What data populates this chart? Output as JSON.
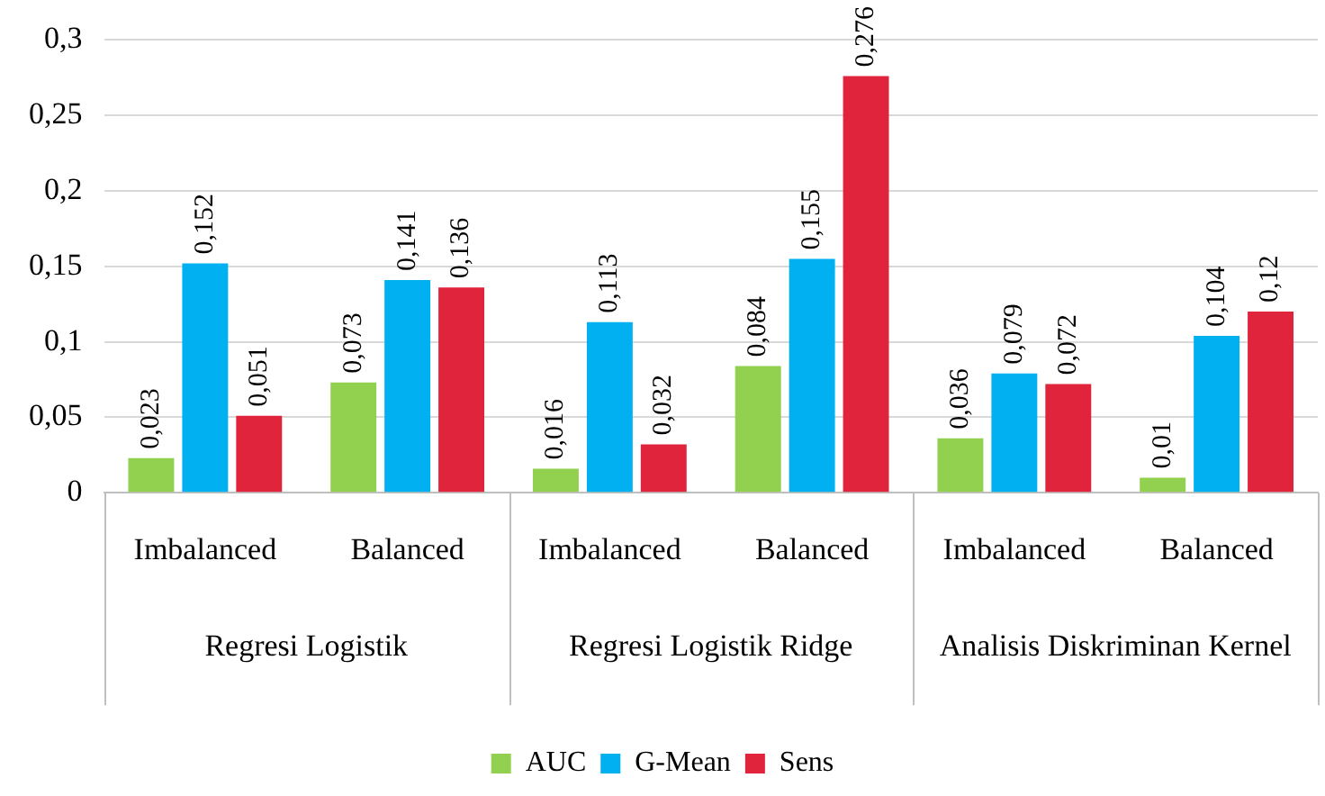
{
  "chart_data": {
    "type": "bar",
    "categories": [
      "Imbalanced",
      "Balanced",
      "Imbalanced",
      "Balanced",
      "Imbalanced",
      "Balanced"
    ],
    "series": [
      {
        "name": "AUC",
        "color": "#92d050",
        "values": [
          0.023,
          0.073,
          0.016,
          0.084,
          0.036,
          0.01
        ],
        "value_labels": [
          "0,023",
          "0,073",
          "0,016",
          "0,084",
          "0,036",
          "0,01"
        ]
      },
      {
        "name": "G-Mean",
        "color": "#00b0f0",
        "values": [
          0.152,
          0.141,
          0.113,
          0.155,
          0.079,
          0.104
        ],
        "value_labels": [
          "0,152",
          "0,141",
          "0,113",
          "0,155",
          "0,079",
          "0,104"
        ]
      },
      {
        "name": "Sens",
        "color": "#e0243c",
        "values": [
          0.051,
          0.136,
          0.032,
          0.276,
          0.072,
          0.12
        ],
        "value_labels": [
          "0,051",
          "0,136",
          "0,032",
          "0,276",
          "0,072",
          "0,12"
        ]
      }
    ],
    "ylim": [
      0,
      0.3
    ],
    "yticks": [
      {
        "value": 0,
        "label": "0"
      },
      {
        "value": 0.05,
        "label": "0,05"
      },
      {
        "value": 0.1,
        "label": "0,1"
      },
      {
        "value": 0.15,
        "label": "0,15"
      },
      {
        "value": 0.2,
        "label": "0,2"
      },
      {
        "value": 0.25,
        "label": "0,25"
      },
      {
        "value": 0.3,
        "label": "0,3"
      }
    ],
    "annotations": [
      "Regresi Logistik",
      "Regresi Logistik Ridge",
      "Analisis Diskriminan Kernel"
    ],
    "grid": "y",
    "legend": "bottom"
  }
}
